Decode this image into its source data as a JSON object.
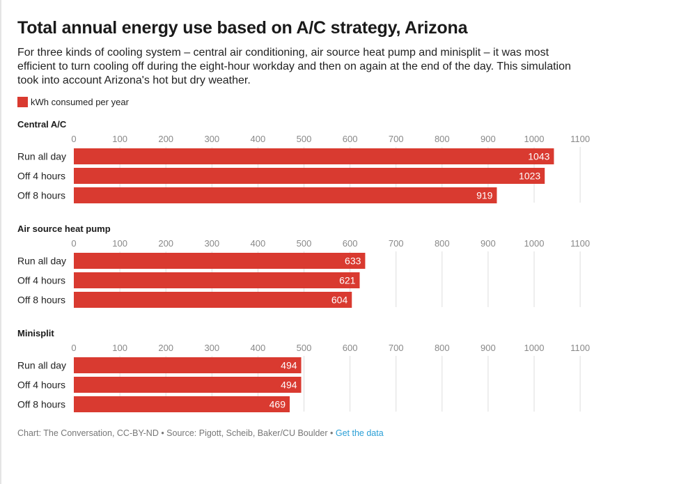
{
  "title": "Total annual energy use based on A/C strategy, Arizona",
  "subtitle": "For three kinds of cooling system – central air conditioning, air source heat pump and minisplit – it was most efficient to turn cooling off during the eight-hour workday and then on again at the end of the day. This simulation took into account Arizona's hot but dry weather.",
  "legend": {
    "label": "kWh consumed per year",
    "color": "#d93a30"
  },
  "footer": {
    "credit": "Chart: The Conversation, CC-BY-ND • Source: Pigott, Scheib, Baker/CU Boulder • ",
    "link": "Get the data"
  },
  "chart_data": [
    {
      "type": "bar",
      "orientation": "horizontal",
      "title": "Central A/C",
      "categories": [
        "Run all day",
        "Off 4 hours",
        "Off 8 hours"
      ],
      "values": [
        1043,
        1023,
        919
      ],
      "xlim": [
        0,
        1100
      ],
      "ticks": [
        0,
        100,
        200,
        300,
        400,
        500,
        600,
        700,
        800,
        900,
        1000,
        1100
      ],
      "bar_color": "#d93a30",
      "grid": true
    },
    {
      "type": "bar",
      "orientation": "horizontal",
      "title": "Air source heat pump",
      "categories": [
        "Run all day",
        "Off 4 hours",
        "Off 8 hours"
      ],
      "values": [
        633,
        621,
        604
      ],
      "xlim": [
        0,
        1100
      ],
      "ticks": [
        0,
        100,
        200,
        300,
        400,
        500,
        600,
        700,
        800,
        900,
        1000,
        1100
      ],
      "bar_color": "#d93a30",
      "grid": true
    },
    {
      "type": "bar",
      "orientation": "horizontal",
      "title": "Minisplit",
      "categories": [
        "Run all day",
        "Off 4 hours",
        "Off 8 hours"
      ],
      "values": [
        494,
        494,
        469
      ],
      "xlim": [
        0,
        1100
      ],
      "ticks": [
        0,
        100,
        200,
        300,
        400,
        500,
        600,
        700,
        800,
        900,
        1000,
        1100
      ],
      "bar_color": "#d93a30",
      "grid": true
    }
  ]
}
